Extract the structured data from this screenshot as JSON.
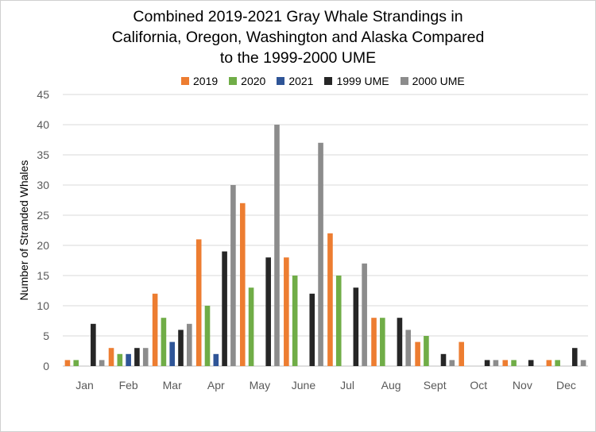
{
  "chart_data": {
    "type": "bar",
    "title_lines": [
      "Combined 2019-2021 Gray Whale Strandings in",
      "California, Oregon, Washington and Alaska Compared",
      "to the 1999-2000 UME"
    ],
    "xlabel": "",
    "ylabel": "Number of Stranded Whales",
    "ylim": [
      0,
      45
    ],
    "yticks": [
      0,
      5,
      10,
      15,
      20,
      25,
      30,
      35,
      40,
      45
    ],
    "grid": true,
    "legend_position": "top",
    "categories": [
      "Jan",
      "Feb",
      "Mar",
      "Apr",
      "May",
      "June",
      "Jul",
      "Aug",
      "Sept",
      "Oct",
      "Nov",
      "Dec"
    ],
    "series": [
      {
        "name": "2019",
        "color": "#ed7d31",
        "values": [
          1,
          3,
          12,
          21,
          27,
          18,
          22,
          8,
          4,
          4,
          1,
          1
        ]
      },
      {
        "name": "2020",
        "color": "#70ad47",
        "values": [
          1,
          2,
          8,
          10,
          13,
          15,
          15,
          8,
          5,
          0,
          1,
          1
        ]
      },
      {
        "name": "2021",
        "color": "#2f5597",
        "values": [
          0,
          2,
          4,
          2,
          0,
          0,
          0,
          0,
          0,
          0,
          0,
          0
        ]
      },
      {
        "name": "1999 UME",
        "color": "#262626",
        "values": [
          7,
          3,
          6,
          19,
          18,
          12,
          13,
          8,
          2,
          1,
          1,
          3
        ]
      },
      {
        "name": "2000 UME",
        "color": "#8c8c8c",
        "values": [
          1,
          3,
          7,
          30,
          40,
          37,
          17,
          6,
          1,
          1,
          0,
          1
        ]
      }
    ]
  }
}
